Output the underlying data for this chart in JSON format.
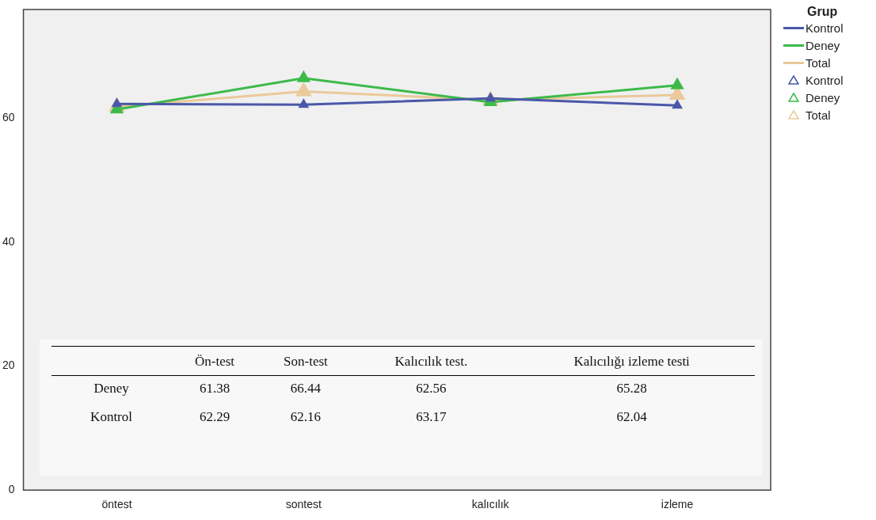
{
  "chart_data": [
    {
      "type": "line",
      "categories": [
        "öntest",
        "sontest",
        "kalıcılık",
        "izleme"
      ],
      "series": [
        {
          "name": "Kontrol",
          "color": "#4a58a8",
          "values": [
            62.29,
            62.16,
            63.17,
            62.04
          ]
        },
        {
          "name": "Deney",
          "color": "#3cba4a",
          "values": [
            61.38,
            66.44,
            62.56,
            65.28
          ]
        },
        {
          "name": "Total",
          "color": "#eac99a",
          "values": [
            61.8,
            64.3,
            62.9,
            63.7
          ]
        }
      ],
      "ylim": [
        0,
        77.5
      ],
      "yticks": [
        0,
        20,
        40,
        60
      ],
      "grid": false,
      "marker": "triangle",
      "legend": "top right",
      "legend_title": "Grup"
    },
    {
      "type": "other",
      "categories": [
        "Ön-test",
        "Son-test",
        "Kalıcılık test.",
        "Kalıcılığı izleme testi"
      ],
      "series": [
        {
          "name": "Deney",
          "values": [
            61.38,
            66.44,
            62.56,
            65.28
          ]
        },
        {
          "name": "Kontrol",
          "values": [
            62.29,
            62.16,
            63.17,
            62.04
          ]
        }
      ],
      "data_labels": true
    }
  ]
}
